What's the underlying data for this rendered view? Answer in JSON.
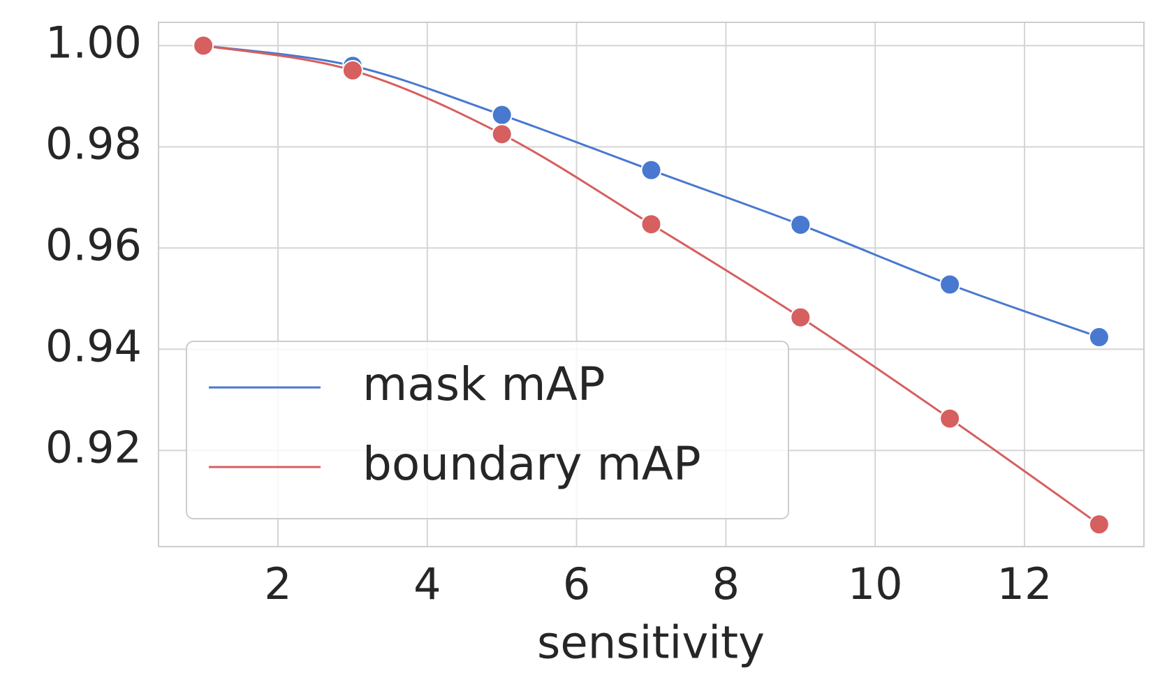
{
  "chart_data": {
    "type": "line",
    "x_label": "sensitivity",
    "x": [
      1,
      3,
      5,
      7,
      9,
      11,
      13
    ],
    "series": [
      {
        "name": "mask mAP",
        "color": "#4878d0",
        "values": [
          1.0,
          0.996,
          0.9863,
          0.9754,
          0.9646,
          0.9528,
          0.9424
        ]
      },
      {
        "name": "boundary mAP",
        "color": "#d65f5f",
        "values": [
          1.0,
          0.9951,
          0.9825,
          0.9647,
          0.9463,
          0.9263,
          0.9054
        ]
      }
    ],
    "xlim": [
      0.4,
      13.6
    ],
    "xticks": [
      2,
      4,
      6,
      8,
      10,
      12
    ],
    "ylim": [
      0.901,
      1.0046
    ],
    "yticks": [
      {
        "value": 0.92,
        "label": "0.92"
      },
      {
        "value": 0.94,
        "label": "0.94"
      },
      {
        "value": 0.96,
        "label": "0.96"
      },
      {
        "value": 0.98,
        "label": "0.98"
      },
      {
        "value": 1.0,
        "label": "1.00"
      }
    ],
    "grid": true,
    "legend": "lower left"
  }
}
